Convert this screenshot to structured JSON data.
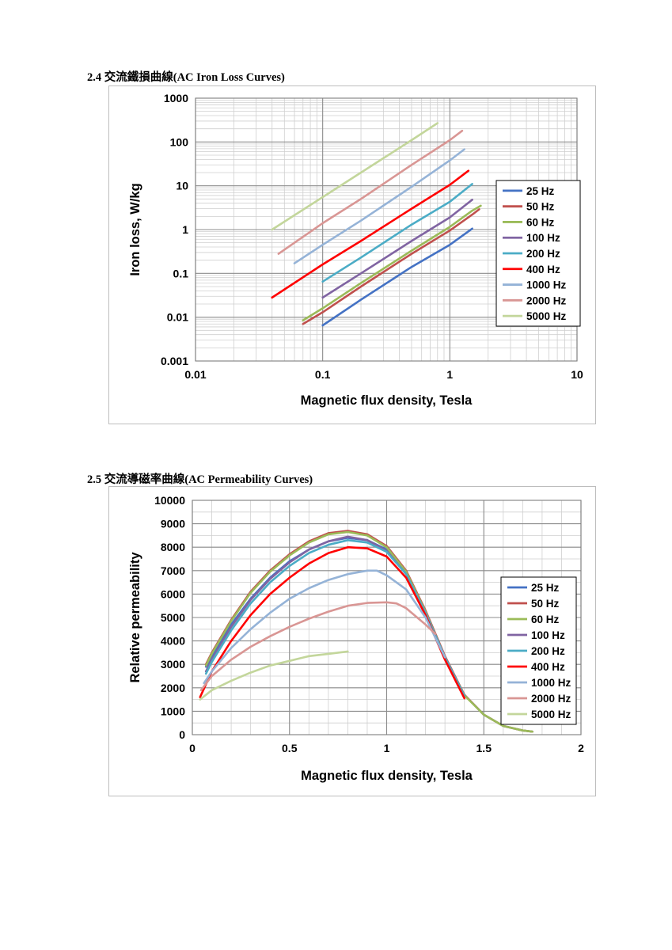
{
  "headings": {
    "loss": "2.4  交流鐵損曲線(AC Iron Loss Curves)",
    "perm": "2.5  交流導磁率曲線(AC Permeability Curves)"
  },
  "chart_data": [
    {
      "type": "line",
      "title": "",
      "xlabel": "Magnetic flux density, Tesla",
      "ylabel": "Iron loss, W/kg",
      "xscale": "log",
      "yscale": "log",
      "xlim": [
        0.01,
        10
      ],
      "ylim": [
        0.001,
        1000
      ],
      "x_ticks": [
        "0.01",
        "0.1",
        "1",
        "10"
      ],
      "y_ticks": [
        "0.001",
        "0.01",
        "0.1",
        "1",
        "10",
        "100",
        "1000"
      ],
      "grid": true,
      "legend_position": "right",
      "series": [
        {
          "name": "25 Hz",
          "color": "#4472c4",
          "x": [
            0.1,
            0.2,
            0.5,
            1.0,
            1.5
          ],
          "y": [
            0.0065,
            0.025,
            0.14,
            0.45,
            1.05
          ]
        },
        {
          "name": "50 Hz",
          "color": "#c0504d",
          "x": [
            0.07,
            0.1,
            0.2,
            0.5,
            1.0,
            1.5,
            1.7
          ],
          "y": [
            0.007,
            0.013,
            0.05,
            0.28,
            0.95,
            2.2,
            2.9
          ]
        },
        {
          "name": "60 Hz",
          "color": "#9bbb59",
          "x": [
            0.07,
            0.1,
            0.2,
            0.5,
            1.0,
            1.5,
            1.75
          ],
          "y": [
            0.0085,
            0.016,
            0.06,
            0.33,
            1.15,
            2.7,
            3.5
          ]
        },
        {
          "name": "100 Hz",
          "color": "#8064a2",
          "x": [
            0.1,
            0.2,
            0.5,
            1.0,
            1.5
          ],
          "y": [
            0.028,
            0.1,
            0.55,
            1.9,
            4.8
          ]
        },
        {
          "name": "200 Hz",
          "color": "#4bacc6",
          "x": [
            0.1,
            0.2,
            0.5,
            1.0,
            1.5
          ],
          "y": [
            0.065,
            0.23,
            1.3,
            4.3,
            11
          ]
        },
        {
          "name": "400 Hz",
          "color": "#ff0000",
          "x": [
            0.04,
            0.1,
            0.2,
            0.5,
            1.0,
            1.4
          ],
          "y": [
            0.028,
            0.16,
            0.55,
            3.0,
            10.5,
            22
          ]
        },
        {
          "name": "1000 Hz",
          "color": "#95b3d7",
          "x": [
            0.06,
            0.1,
            0.2,
            0.5,
            1.0,
            1.3
          ],
          "y": [
            0.17,
            0.45,
            1.6,
            9.5,
            38,
            68
          ]
        },
        {
          "name": "2000 Hz",
          "color": "#d99694",
          "x": [
            0.045,
            0.1,
            0.2,
            0.5,
            1.0,
            1.25
          ],
          "y": [
            0.28,
            1.4,
            5.0,
            30,
            110,
            180
          ]
        },
        {
          "name": "5000 Hz",
          "color": "#c3d69b",
          "x": [
            0.04,
            0.1,
            0.2,
            0.5,
            0.8
          ],
          "y": [
            1.0,
            5.5,
            20,
            110,
            270
          ]
        }
      ]
    },
    {
      "type": "line",
      "title": "",
      "xlabel": "Magnetic flux density, Tesla",
      "ylabel": "Relative permeability",
      "xlim": [
        0,
        2
      ],
      "ylim": [
        0,
        10000
      ],
      "x_ticks": [
        "0",
        "0.5",
        "1",
        "1.5",
        "2"
      ],
      "y_ticks": [
        "0",
        "1000",
        "2000",
        "3000",
        "4000",
        "5000",
        "6000",
        "7000",
        "8000",
        "9000",
        "10000"
      ],
      "grid": true,
      "legend_position": "right",
      "series": [
        {
          "name": "25 Hz",
          "color": "#4472c4",
          "x": [
            0.07,
            0.1,
            0.2,
            0.3,
            0.4,
            0.5,
            0.6,
            0.7,
            0.8,
            0.9,
            1.0,
            1.1,
            1.2,
            1.3,
            1.4,
            1.5,
            1.6,
            1.7,
            1.75
          ],
          "y": [
            2900,
            3300,
            4700,
            5800,
            6700,
            7400,
            7900,
            8250,
            8400,
            8300,
            7900,
            6900,
            5200,
            3300,
            1700,
            850,
            370,
            180,
            130
          ]
        },
        {
          "name": "50 Hz",
          "color": "#c0504d",
          "x": [
            0.07,
            0.1,
            0.2,
            0.3,
            0.4,
            0.5,
            0.6,
            0.7,
            0.8,
            0.9,
            1.0,
            1.1,
            1.2,
            1.3,
            1.4,
            1.5,
            1.6,
            1.7,
            1.75
          ],
          "y": [
            3000,
            3500,
            4900,
            6100,
            7000,
            7700,
            8250,
            8600,
            8700,
            8550,
            8050,
            7000,
            5300,
            3350,
            1700,
            850,
            370,
            180,
            130
          ]
        },
        {
          "name": "60 Hz",
          "color": "#9bbb59",
          "x": [
            0.07,
            0.1,
            0.2,
            0.3,
            0.4,
            0.5,
            0.6,
            0.7,
            0.8,
            0.9,
            1.0,
            1.1,
            1.2,
            1.3,
            1.4,
            1.5,
            1.6,
            1.7,
            1.75
          ],
          "y": [
            2950,
            3450,
            4850,
            6050,
            6950,
            7650,
            8200,
            8550,
            8650,
            8500,
            8000,
            6950,
            5250,
            3300,
            1680,
            850,
            370,
            180,
            130
          ]
        },
        {
          "name": "100 Hz",
          "color": "#8064a2",
          "x": [
            0.07,
            0.1,
            0.2,
            0.3,
            0.4,
            0.5,
            0.6,
            0.7,
            0.8,
            0.9,
            1.0,
            1.1,
            1.2,
            1.3,
            1.4
          ],
          "y": [
            2700,
            3200,
            4600,
            5750,
            6650,
            7350,
            7900,
            8250,
            8450,
            8300,
            7850,
            6850,
            5200,
            3300,
            1650
          ]
        },
        {
          "name": "200 Hz",
          "color": "#4bacc6",
          "x": [
            0.07,
            0.1,
            0.2,
            0.3,
            0.4,
            0.5,
            0.6,
            0.7,
            0.8,
            0.9,
            1.0,
            1.1,
            1.2,
            1.3,
            1.4
          ],
          "y": [
            2600,
            3100,
            4450,
            5600,
            6500,
            7200,
            7750,
            8100,
            8300,
            8200,
            7800,
            6850,
            5200,
            3300,
            1650
          ]
        },
        {
          "name": "400 Hz",
          "color": "#ff0000",
          "x": [
            0.04,
            0.1,
            0.2,
            0.3,
            0.4,
            0.5,
            0.6,
            0.7,
            0.8,
            0.9,
            1.0,
            1.1,
            1.2,
            1.3,
            1.4
          ],
          "y": [
            1600,
            2700,
            4000,
            5100,
            6000,
            6700,
            7300,
            7750,
            8000,
            7950,
            7600,
            6700,
            5100,
            3200,
            1550
          ]
        },
        {
          "name": "1000 Hz",
          "color": "#95b3d7",
          "x": [
            0.06,
            0.1,
            0.2,
            0.3,
            0.4,
            0.5,
            0.6,
            0.7,
            0.8,
            0.9,
            0.95,
            1.0,
            1.1,
            1.2,
            1.3
          ],
          "y": [
            2200,
            2700,
            3700,
            4500,
            5200,
            5800,
            6250,
            6600,
            6850,
            7000,
            7000,
            6800,
            6200,
            5000,
            3300
          ]
        },
        {
          "name": "2000 Hz",
          "color": "#d99694",
          "x": [
            0.045,
            0.1,
            0.2,
            0.3,
            0.4,
            0.5,
            0.6,
            0.7,
            0.8,
            0.9,
            1.0,
            1.05,
            1.1,
            1.2,
            1.25
          ],
          "y": [
            1900,
            2500,
            3200,
            3750,
            4200,
            4600,
            4950,
            5250,
            5500,
            5620,
            5650,
            5600,
            5400,
            4700,
            4300
          ]
        },
        {
          "name": "5000 Hz",
          "color": "#c3d69b",
          "x": [
            0.04,
            0.1,
            0.2,
            0.3,
            0.4,
            0.5,
            0.6,
            0.7,
            0.8
          ],
          "y": [
            1500,
            1900,
            2300,
            2650,
            2950,
            3150,
            3350,
            3450,
            3550
          ]
        }
      ]
    }
  ]
}
